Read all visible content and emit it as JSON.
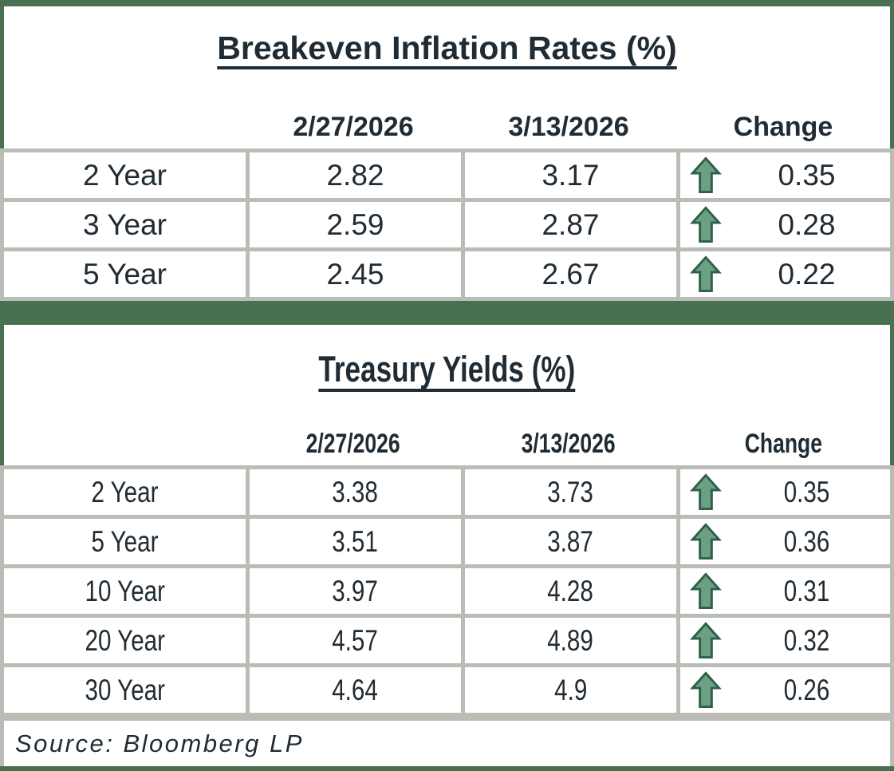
{
  "colors": {
    "accent_green": "#47714f",
    "gridline_gray": "#babcb5",
    "text_ink": "#202b33",
    "arrow_fill": "#6ba085",
    "arrow_outline": "#2e5f4b"
  },
  "icons": {
    "up_arrow": "up-arrow-icon"
  },
  "source": "Source: Bloomberg LP",
  "chart_data": [
    {
      "type": "table",
      "title": "Breakeven Inflation Rates (%)",
      "columns": [
        "2/27/2026",
        "3/13/2026",
        "Change"
      ],
      "rows": [
        {
          "label": "2 Year",
          "prev": "2.82",
          "curr": "3.17",
          "change": "0.35",
          "direction": "up"
        },
        {
          "label": "3 Year",
          "prev": "2.59",
          "curr": "2.87",
          "change": "0.28",
          "direction": "up"
        },
        {
          "label": "5 Year",
          "prev": "2.45",
          "curr": "2.67",
          "change": "0.22",
          "direction": "up"
        }
      ]
    },
    {
      "type": "table",
      "title": "Treasury Yields (%)",
      "columns": [
        "2/27/2026",
        "3/13/2026",
        "Change"
      ],
      "rows": [
        {
          "label": "2 Year",
          "prev": "3.38",
          "curr": "3.73",
          "change": "0.35",
          "direction": "up"
        },
        {
          "label": "5 Year",
          "prev": "3.51",
          "curr": "3.87",
          "change": "0.36",
          "direction": "up"
        },
        {
          "label": "10 Year",
          "prev": "3.97",
          "curr": "4.28",
          "change": "0.31",
          "direction": "up"
        },
        {
          "label": "20 Year",
          "prev": "4.57",
          "curr": "4.89",
          "change": "0.32",
          "direction": "up"
        },
        {
          "label": "30 Year",
          "prev": "4.64",
          "curr": "4.9",
          "change": "0.26",
          "direction": "up"
        }
      ]
    }
  ]
}
